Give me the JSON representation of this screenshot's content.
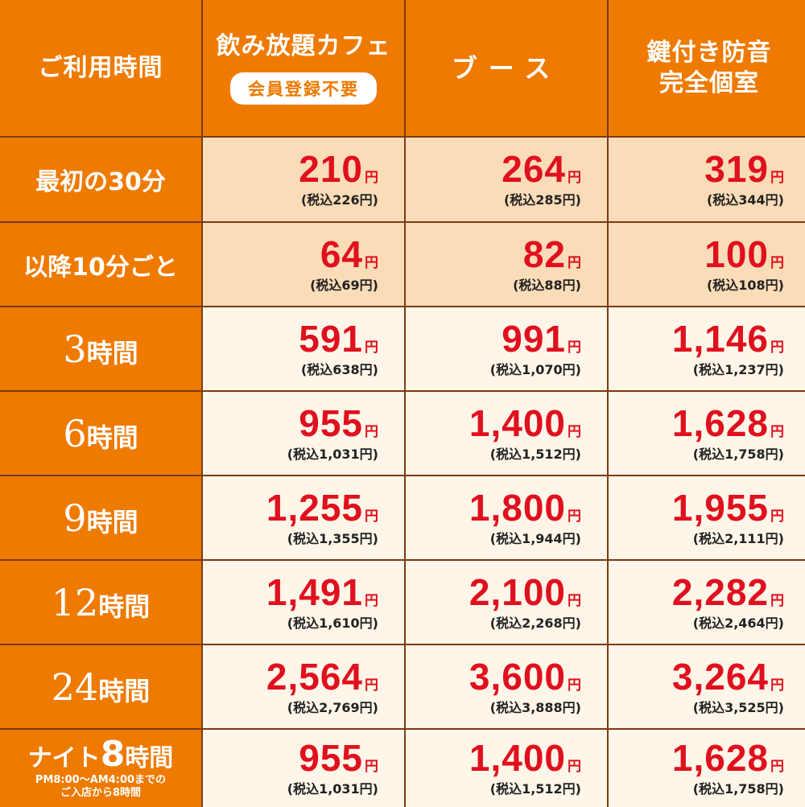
{
  "header": {
    "corner": "ご利用時間",
    "col1_title": "飲み放題カフェ",
    "col1_badge": "会員登録不要",
    "col2_title": "ブース",
    "col3_line1": "鍵付き防音",
    "col3_line2": "完全個室"
  },
  "yen": "円",
  "rows": [
    {
      "label": "最初の30分",
      "prices": [
        {
          "amount": "210",
          "tax": "(税込226円)"
        },
        {
          "amount": "264",
          "tax": "(税込285円)"
        },
        {
          "amount": "319",
          "tax": "(税込344円)"
        }
      ]
    },
    {
      "label": "以降10分ごと",
      "prices": [
        {
          "amount": "64",
          "tax": "(税込69円)"
        },
        {
          "amount": "82",
          "tax": "(税込88円)"
        },
        {
          "amount": "100",
          "tax": "(税込108円)"
        }
      ]
    },
    {
      "label_num": "3",
      "label_unit": "時間",
      "prices": [
        {
          "amount": "591",
          "tax": "(税込638円)"
        },
        {
          "amount": "991",
          "tax": "(税込1,070円)"
        },
        {
          "amount": "1,146",
          "tax": "(税込1,237円)"
        }
      ]
    },
    {
      "label_num": "6",
      "label_unit": "時間",
      "prices": [
        {
          "amount": "955",
          "tax": "(税込1,031円)"
        },
        {
          "amount": "1,400",
          "tax": "(税込1,512円)"
        },
        {
          "amount": "1,628",
          "tax": "(税込1,758円)"
        }
      ]
    },
    {
      "label_num": "9",
      "label_unit": "時間",
      "prices": [
        {
          "amount": "1,255",
          "tax": "(税込1,355円)"
        },
        {
          "amount": "1,800",
          "tax": "(税込1,944円)"
        },
        {
          "amount": "1,955",
          "tax": "(税込2,111円)"
        }
      ]
    },
    {
      "label_num": "12",
      "label_unit": "時間",
      "prices": [
        {
          "amount": "1,491",
          "tax": "(税込1,610円)"
        },
        {
          "amount": "2,100",
          "tax": "(税込2,268円)"
        },
        {
          "amount": "2,282",
          "tax": "(税込2,464円)"
        }
      ]
    },
    {
      "label_num": "24",
      "label_unit": "時間",
      "prices": [
        {
          "amount": "2,564",
          "tax": "(税込2,769円)"
        },
        {
          "amount": "3,600",
          "tax": "(税込3,888円)"
        },
        {
          "amount": "3,264",
          "tax": "(税込3,525円)"
        }
      ]
    },
    {
      "label_pre": "ナイト",
      "label_num": "8",
      "label_unit": "時間",
      "note1": "PM8:00～AM4:00までの",
      "note2": "ご入店から8時間",
      "prices": [
        {
          "amount": "955",
          "tax": "(税込1,031円)"
        },
        {
          "amount": "1,400",
          "tax": "(税込1,512円)"
        },
        {
          "amount": "1,628",
          "tax": "(税込1,758円)"
        }
      ]
    }
  ],
  "colors": {
    "header_orange": "#ee7a00",
    "border_brown": "#7a3a14",
    "peach": "#fbdcb8",
    "cream": "#fff6e9",
    "price_red": "#e0101e"
  }
}
